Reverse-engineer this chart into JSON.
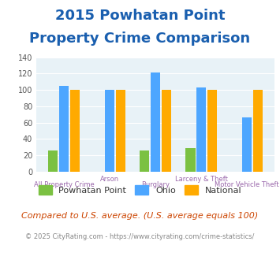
{
  "title_line1": "2015 Powhatan Point",
  "title_line2": "Property Crime Comparison",
  "categories": [
    "All Property Crime",
    "Arson",
    "Burglary",
    "Larceny & Theft",
    "Motor Vehicle Theft"
  ],
  "powhatan": [
    26,
    0,
    26,
    29,
    0
  ],
  "ohio": [
    105,
    100,
    121,
    103,
    66
  ],
  "national": [
    100,
    100,
    100,
    100,
    100
  ],
  "color_powhatan": "#7bc142",
  "color_ohio": "#4da6ff",
  "color_national": "#ffaa00",
  "ylim": [
    0,
    140
  ],
  "yticks": [
    0,
    20,
    40,
    60,
    80,
    100,
    120,
    140
  ],
  "bg_color": "#dde9f0",
  "plot_bg": "#e8f2f7",
  "footer_text": "Compared to U.S. average. (U.S. average equals 100)",
  "copyright_text": "© 2025 CityRating.com - https://www.cityrating.com/crime-statistics/",
  "title_color": "#1a5faf",
  "footer_color": "#cc4400",
  "copyright_color": "#888888",
  "xlabel_color": "#9966aa",
  "legend_labels": [
    "Powhatan Point",
    "Ohio",
    "National"
  ]
}
